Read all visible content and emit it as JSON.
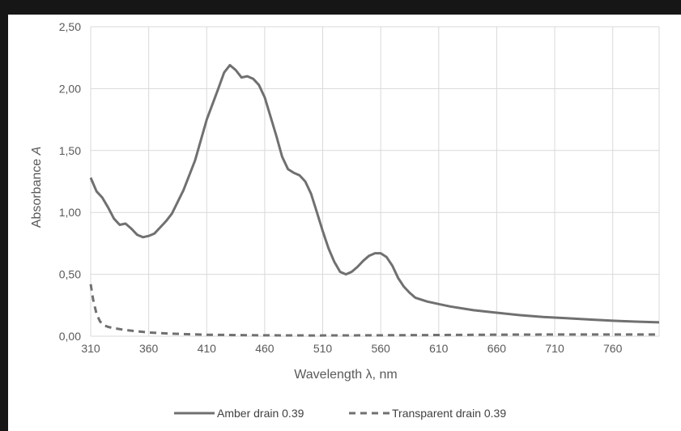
{
  "chart_data": {
    "type": "line",
    "xlabel": "Wavelength λ, nm",
    "ylabel_prefix": "Absorbance ",
    "ylabel_symbol": "A",
    "xlim": [
      310,
      800
    ],
    "ylim": [
      0,
      2.5
    ],
    "x_ticks": [
      "310",
      "360",
      "410",
      "460",
      "510",
      "560",
      "610",
      "660",
      "710",
      "760"
    ],
    "y_ticks": [
      "0,00",
      "0,50",
      "1,00",
      "1,50",
      "2,00",
      "2,50"
    ],
    "grid": true,
    "legend_position": "bottom",
    "series": [
      {
        "name": "Amber drain 0.39",
        "style": "solid",
        "color": "#707070",
        "x": [
          310,
          315,
          320,
          325,
          330,
          335,
          340,
          345,
          350,
          355,
          360,
          365,
          370,
          375,
          380,
          390,
          400,
          410,
          420,
          425,
          430,
          435,
          440,
          445,
          450,
          455,
          460,
          470,
          475,
          480,
          485,
          490,
          495,
          500,
          505,
          510,
          515,
          520,
          525,
          530,
          535,
          540,
          545,
          550,
          555,
          560,
          565,
          570,
          575,
          580,
          585,
          590,
          600,
          610,
          620,
          640,
          660,
          680,
          700,
          720,
          740,
          760,
          780,
          800
        ],
        "y": [
          1.28,
          1.17,
          1.12,
          1.04,
          0.95,
          0.9,
          0.91,
          0.87,
          0.82,
          0.8,
          0.81,
          0.83,
          0.88,
          0.93,
          0.99,
          1.18,
          1.42,
          1.75,
          2.0,
          2.13,
          2.19,
          2.15,
          2.09,
          2.1,
          2.08,
          2.03,
          1.93,
          1.62,
          1.45,
          1.35,
          1.32,
          1.3,
          1.25,
          1.15,
          1.0,
          0.85,
          0.71,
          0.6,
          0.52,
          0.5,
          0.52,
          0.56,
          0.61,
          0.65,
          0.67,
          0.67,
          0.64,
          0.57,
          0.47,
          0.4,
          0.35,
          0.31,
          0.28,
          0.26,
          0.24,
          0.21,
          0.19,
          0.17,
          0.155,
          0.145,
          0.135,
          0.125,
          0.118,
          0.112
        ]
      },
      {
        "name": "Transparent drain 0.39",
        "style": "dashed",
        "color": "#707070",
        "x": [
          310,
          312,
          315,
          318,
          321,
          325,
          330,
          340,
          350,
          360,
          380,
          410,
          450,
          500,
          550,
          600,
          650,
          700,
          750,
          800
        ],
        "y": [
          0.42,
          0.3,
          0.18,
          0.12,
          0.09,
          0.075,
          0.065,
          0.05,
          0.04,
          0.03,
          0.02,
          0.012,
          0.008,
          0.006,
          0.007,
          0.009,
          0.012,
          0.014,
          0.014,
          0.014
        ]
      }
    ]
  }
}
